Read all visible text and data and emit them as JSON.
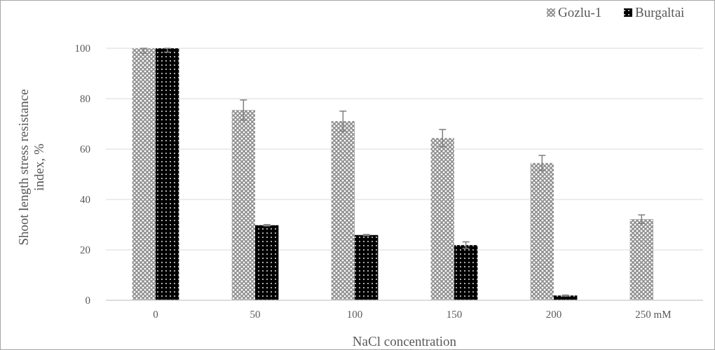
{
  "chart_data": {
    "type": "bar",
    "xlabel": "NaCl concentration",
    "ylabel": "Shoot length stress resistance index, %",
    "categories": [
      "0",
      "50",
      "100",
      "150",
      "200",
      "250 mM"
    ],
    "series": [
      {
        "name": "Gozlu-1",
        "color": "#8c8c8c",
        "values": [
          100,
          75.5,
          71.1,
          64.4,
          54.5,
          32.2
        ],
        "errors": [
          [
            98,
            100
          ],
          4,
          4,
          3.4,
          3,
          1.7
        ]
      },
      {
        "name": "Burgaltai",
        "color": "#000000",
        "values": [
          100,
          29.8,
          25.9,
          21.9,
          1.9,
          0
        ],
        "errors": [
          [
            98.5,
            100
          ],
          0.3,
          0.2,
          1.3,
          0.2,
          null
        ]
      }
    ],
    "ylim": [
      0,
      100
    ],
    "yticks": [
      0,
      20,
      40,
      60,
      80,
      100
    ],
    "grid": "y",
    "legend": "top right"
  }
}
